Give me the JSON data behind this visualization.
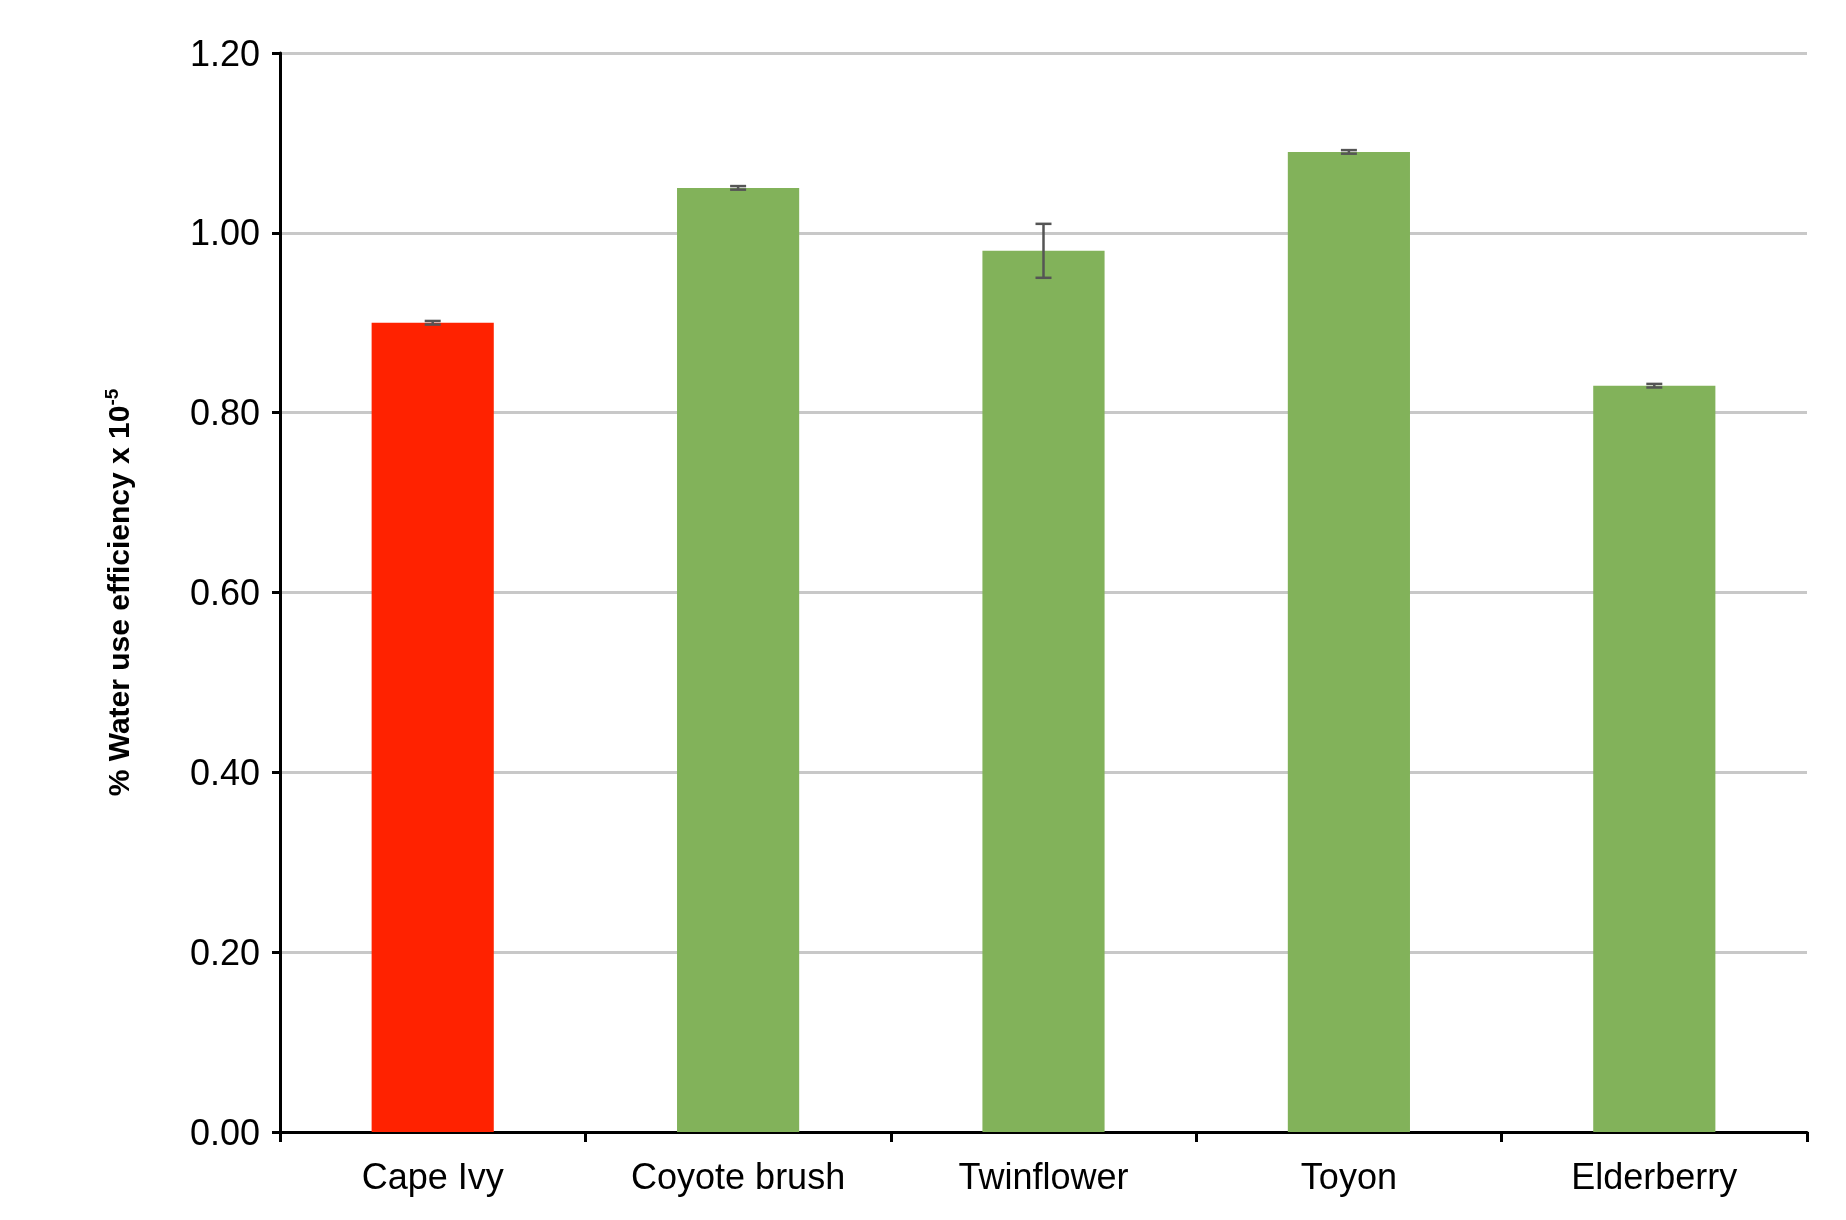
{
  "chart_data": {
    "type": "bar",
    "ylabel": "% Water use efficiency x 10$^{-5}$",
    "categories": [
      "Cape Ivy",
      "Coyote brush",
      "Twinflower",
      "Toyon",
      "Elderberry"
    ],
    "values": [
      0.9,
      1.05,
      0.98,
      1.09,
      0.83
    ],
    "colors": [
      "#ff2200",
      "#82b25a",
      "#82b25a",
      "#82b25a",
      "#82b25a"
    ],
    "errors": [
      0.002,
      0.002,
      0.03,
      0.002,
      0.002
    ],
    "ylim": [
      0,
      1.2
    ],
    "yticks": [
      {
        "value": 0,
        "label": "0.00"
      },
      {
        "value": 0.2,
        "label": "0.20"
      },
      {
        "value": 0.4,
        "label": "0.40"
      },
      {
        "value": 0.6,
        "label": "0.60"
      },
      {
        "value": 0.8,
        "label": "0.80"
      },
      {
        "value": 1.0,
        "label": "1.00"
      },
      {
        "value": 1.2,
        "label": "1.20"
      }
    ],
    "grid": "y"
  }
}
